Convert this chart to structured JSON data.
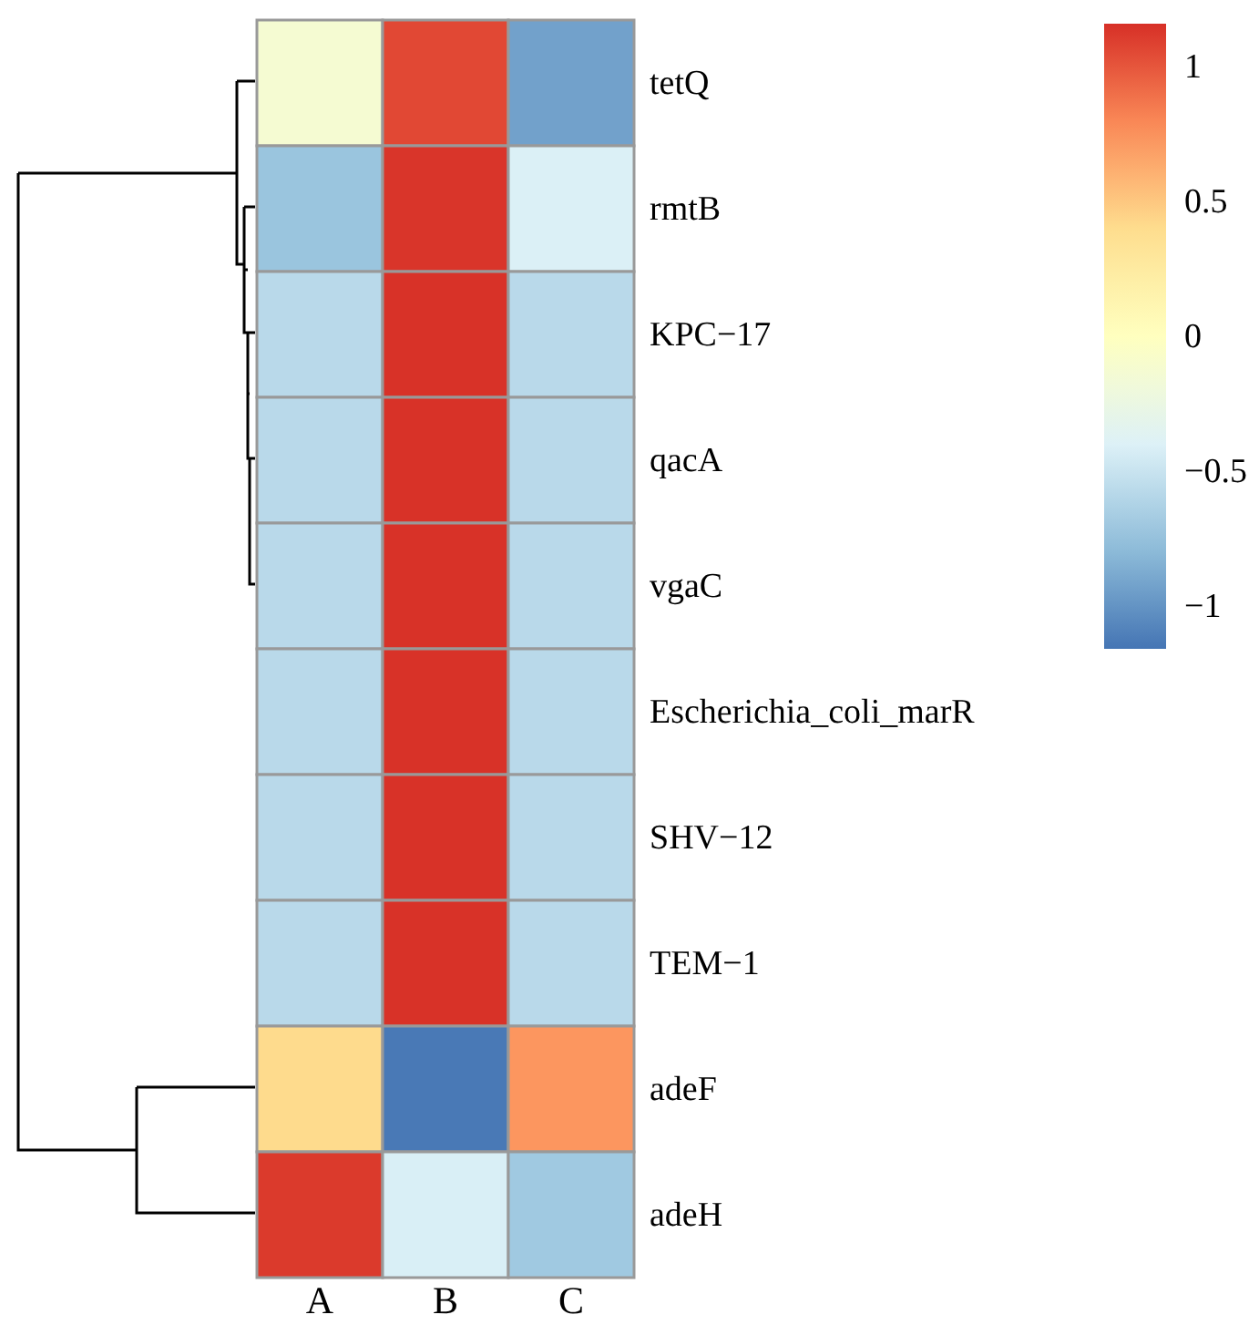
{
  "chart_data": {
    "type": "heatmap",
    "categories": [
      "A",
      "B",
      "C"
    ],
    "y_categories": [
      "tetQ",
      "rmtB",
      "KPC−17",
      "qacA",
      "vgaC",
      "Escherichia_coli_marR",
      "SHV−12",
      "TEM−1",
      "adeF",
      "adeH"
    ],
    "cells": [
      [
        -0.13,
        1.06,
        -0.93
      ],
      [
        -0.73,
        1.14,
        -0.41
      ],
      [
        -0.58,
        1.15,
        -0.58
      ],
      [
        -0.58,
        1.15,
        -0.58
      ],
      [
        -0.58,
        1.15,
        -0.58
      ],
      [
        -0.58,
        1.15,
        -0.58
      ],
      [
        -0.58,
        1.15,
        -0.58
      ],
      [
        -0.58,
        1.15,
        -0.58
      ],
      [
        0.41,
        -1.14,
        0.73
      ],
      [
        1.12,
        -0.42,
        -0.7
      ]
    ],
    "clim": [
      -1.16,
      1.16
    ],
    "cticks": [
      -1,
      -0.5,
      0,
      0.5,
      1
    ]
  }
}
